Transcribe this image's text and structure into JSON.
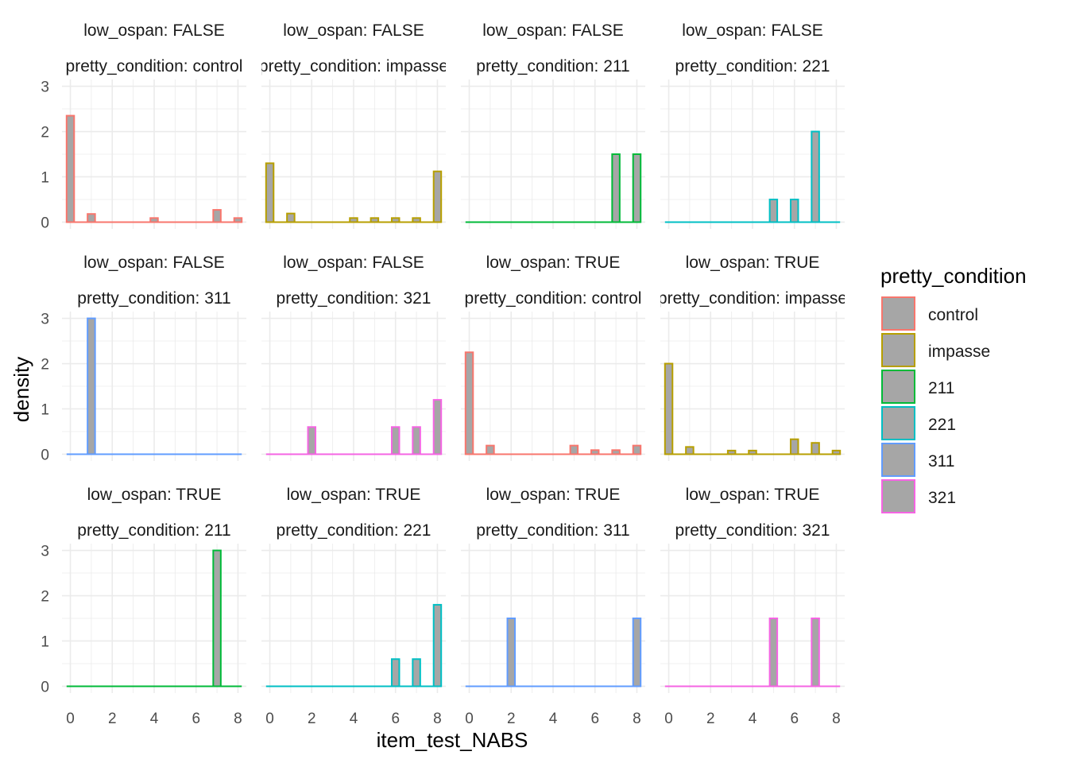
{
  "chart_data": {
    "type": "bar",
    "facet_row_var": "low_ospan",
    "facet_col_var": "pretty_condition",
    "xlabel": "item_test_NABS",
    "ylabel": "density",
    "xlim": [
      0,
      8
    ],
    "ylim": [
      0,
      3
    ],
    "x_ticks": [
      0,
      2,
      4,
      6,
      8
    ],
    "y_ticks": [
      0,
      1,
      2,
      3
    ],
    "grid": true,
    "bar_fill": "#A6A6A6",
    "legend": {
      "title": "pretty_condition",
      "position": "right",
      "entries": [
        {
          "label": "control",
          "color": "#F8766D"
        },
        {
          "label": "impasse",
          "color": "#B79F00"
        },
        {
          "label": "211",
          "color": "#00BA38"
        },
        {
          "label": "221",
          "color": "#00BFC4"
        },
        {
          "label": "311",
          "color": "#619CFF"
        },
        {
          "label": "321",
          "color": "#F564E3"
        }
      ]
    },
    "panels": [
      {
        "strip_top": "low_ospan: FALSE",
        "strip_bottom": "pretty_condition: control",
        "color": "#F8766D",
        "x": [
          0,
          1,
          2,
          3,
          4,
          5,
          6,
          7,
          8
        ],
        "values": [
          2.35,
          0.18,
          0,
          0,
          0.09,
          0,
          0,
          0.27,
          0.09
        ]
      },
      {
        "strip_top": "low_ospan: FALSE",
        "strip_bottom": "pretty_condition: impasse",
        "color": "#B79F00",
        "x": [
          0,
          1,
          2,
          3,
          4,
          5,
          6,
          7,
          8
        ],
        "values": [
          1.3,
          0.19,
          0,
          0,
          0.09,
          0.09,
          0.09,
          0.09,
          1.12
        ]
      },
      {
        "strip_top": "low_ospan: FALSE",
        "strip_bottom": "pretty_condition: 211",
        "color": "#00BA38",
        "x": [
          0,
          1,
          2,
          3,
          4,
          5,
          6,
          7,
          8
        ],
        "values": [
          0,
          0,
          0,
          0,
          0,
          0,
          0,
          1.5,
          1.5
        ]
      },
      {
        "strip_top": "low_ospan: FALSE",
        "strip_bottom": "pretty_condition: 221",
        "color": "#00BFC4",
        "x": [
          0,
          1,
          2,
          3,
          4,
          5,
          6,
          7,
          8
        ],
        "values": [
          0,
          0,
          0,
          0,
          0,
          0.5,
          0.5,
          2.0,
          0
        ]
      },
      {
        "strip_top": "low_ospan: FALSE",
        "strip_bottom": "pretty_condition: 311",
        "color": "#619CFF",
        "x": [
          0,
          1,
          2,
          3,
          4,
          5,
          6,
          7,
          8
        ],
        "values": [
          0,
          3.0,
          0,
          0,
          0,
          0,
          0,
          0,
          0
        ]
      },
      {
        "strip_top": "low_ospan: FALSE",
        "strip_bottom": "pretty_condition: 321",
        "color": "#F564E3",
        "x": [
          0,
          1,
          2,
          3,
          4,
          5,
          6,
          7,
          8
        ],
        "values": [
          0,
          0,
          0.6,
          0,
          0,
          0,
          0.6,
          0.6,
          1.2
        ]
      },
      {
        "strip_top": "low_ospan: TRUE",
        "strip_bottom": "pretty_condition: control",
        "color": "#F8766D",
        "x": [
          0,
          1,
          2,
          3,
          4,
          5,
          6,
          7,
          8
        ],
        "values": [
          2.25,
          0.19,
          0,
          0,
          0,
          0.19,
          0.09,
          0.09,
          0.19
        ]
      },
      {
        "strip_top": "low_ospan: TRUE",
        "strip_bottom": "pretty_condition: impasse",
        "color": "#B79F00",
        "x": [
          0,
          1,
          2,
          3,
          4,
          5,
          6,
          7,
          8
        ],
        "values": [
          2.0,
          0.16,
          0,
          0.08,
          0.08,
          0,
          0.33,
          0.25,
          0.08
        ]
      },
      {
        "strip_top": "low_ospan: TRUE",
        "strip_bottom": "pretty_condition: 211",
        "color": "#00BA38",
        "x": [
          0,
          1,
          2,
          3,
          4,
          5,
          6,
          7,
          8
        ],
        "values": [
          0,
          0,
          0,
          0,
          0,
          0,
          0,
          3.0,
          0
        ]
      },
      {
        "strip_top": "low_ospan: TRUE",
        "strip_bottom": "pretty_condition: 221",
        "color": "#00BFC4",
        "x": [
          0,
          1,
          2,
          3,
          4,
          5,
          6,
          7,
          8
        ],
        "values": [
          0,
          0,
          0,
          0,
          0,
          0,
          0.6,
          0.6,
          1.8
        ]
      },
      {
        "strip_top": "low_ospan: TRUE",
        "strip_bottom": "pretty_condition: 311",
        "color": "#619CFF",
        "x": [
          0,
          1,
          2,
          3,
          4,
          5,
          6,
          7,
          8
        ],
        "values": [
          0,
          0,
          1.5,
          0,
          0,
          0,
          0,
          0,
          1.5
        ]
      },
      {
        "strip_top": "low_ospan: TRUE",
        "strip_bottom": "pretty_condition: 321",
        "color": "#F564E3",
        "x": [
          0,
          1,
          2,
          3,
          4,
          5,
          6,
          7,
          8
        ],
        "values": [
          0,
          0,
          0,
          0,
          0,
          1.5,
          0,
          1.5,
          0
        ]
      }
    ]
  }
}
